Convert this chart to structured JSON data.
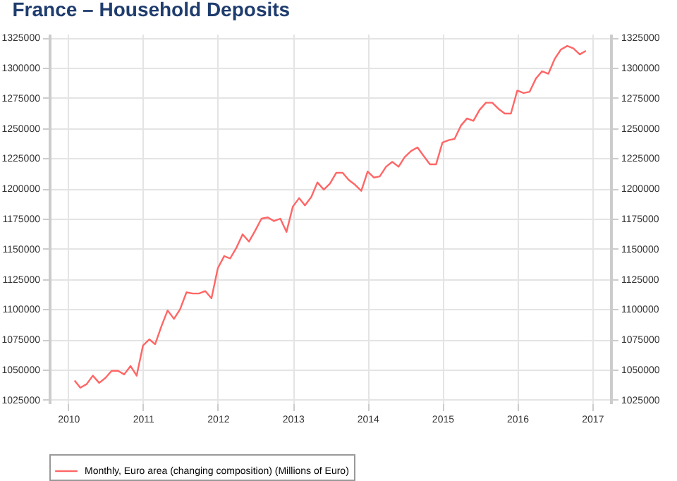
{
  "chart_data": {
    "type": "line",
    "title": "France – Household Deposits",
    "x": [
      "2010-02",
      "2010-03",
      "2010-04",
      "2010-05",
      "2010-06",
      "2010-07",
      "2010-08",
      "2010-09",
      "2010-10",
      "2010-11",
      "2010-12",
      "2011-01",
      "2011-02",
      "2011-03",
      "2011-04",
      "2011-05",
      "2011-06",
      "2011-07",
      "2011-08",
      "2011-09",
      "2011-10",
      "2011-11",
      "2011-12",
      "2012-01",
      "2012-02",
      "2012-03",
      "2012-04",
      "2012-05",
      "2012-06",
      "2012-07",
      "2012-08",
      "2012-09",
      "2012-10",
      "2012-11",
      "2012-12",
      "2013-01",
      "2013-02",
      "2013-03",
      "2013-04",
      "2013-05",
      "2013-06",
      "2013-07",
      "2013-08",
      "2013-09",
      "2013-10",
      "2013-11",
      "2013-12",
      "2014-01",
      "2014-02",
      "2014-03",
      "2014-04",
      "2014-05",
      "2014-06",
      "2014-07",
      "2014-08",
      "2014-09",
      "2014-10",
      "2014-11",
      "2014-12",
      "2015-01",
      "2015-02",
      "2015-03",
      "2015-04",
      "2015-05",
      "2015-06",
      "2015-07",
      "2015-08",
      "2015-09",
      "2015-10",
      "2015-11",
      "2015-12",
      "2016-01",
      "2016-02",
      "2016-03",
      "2016-04",
      "2016-05",
      "2016-06",
      "2016-07",
      "2016-08",
      "2016-09",
      "2016-10",
      "2016-11",
      "2016-12"
    ],
    "series": [
      {
        "name": "Monthly, Euro area (changing composition) (Millions of Euro)",
        "color": "#ff6666",
        "values": [
          1041000,
          1035000,
          1038000,
          1045000,
          1039000,
          1043000,
          1049000,
          1049000,
          1046000,
          1053000,
          1045000,
          1070000,
          1075000,
          1071000,
          1086000,
          1099000,
          1092000,
          1100000,
          1114000,
          1113000,
          1113000,
          1115000,
          1109000,
          1134000,
          1144000,
          1142000,
          1151000,
          1162000,
          1156000,
          1165000,
          1175000,
          1176000,
          1173000,
          1175000,
          1164000,
          1185000,
          1192000,
          1186000,
          1193000,
          1205000,
          1199000,
          1204000,
          1213000,
          1213000,
          1207000,
          1203000,
          1198000,
          1214000,
          1209000,
          1210000,
          1218000,
          1222000,
          1218000,
          1226000,
          1231000,
          1234000,
          1227000,
          1220000,
          1220000,
          1238000,
          1240000,
          1241000,
          1252000,
          1258000,
          1256000,
          1265000,
          1271000,
          1271000,
          1266000,
          1262000,
          1262000,
          1281000,
          1279000,
          1280000,
          1291000,
          1297000,
          1295000,
          1307000,
          1315000,
          1318000,
          1316000,
          1311000,
          1314000
        ]
      }
    ],
    "xlim": [
      "2009-10",
      "2017-04"
    ],
    "xticks": [
      "2010",
      "2011",
      "2012",
      "2013",
      "2014",
      "2015",
      "2016",
      "2017"
    ],
    "ylim": [
      1022000,
      1328000
    ],
    "yticks": [
      1025000,
      1050000,
      1075000,
      1100000,
      1125000,
      1150000,
      1175000,
      1200000,
      1225000,
      1250000,
      1275000,
      1300000,
      1325000
    ],
    "y2lim": [
      1022000,
      1328000
    ],
    "y2ticks": [
      1025000,
      1050000,
      1075000,
      1100000,
      1125000,
      1150000,
      1175000,
      1200000,
      1225000,
      1250000,
      1275000,
      1300000,
      1325000
    ],
    "grid": true,
    "legend": "bottom"
  }
}
